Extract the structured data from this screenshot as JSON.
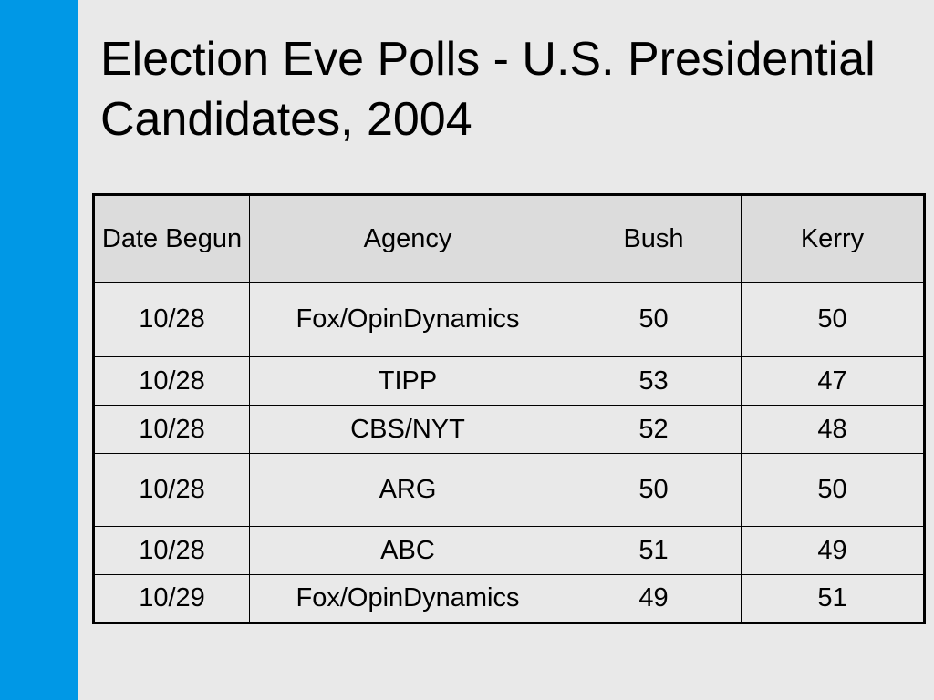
{
  "slide": {
    "title": "Election Eve Polls - U.S. Presidential Candidates, 2004",
    "accent_color": "#0098e6",
    "background_color": "#e9e9e9",
    "header_fill_color": "#dcdcdc"
  },
  "table": {
    "columns": [
      "Date Begun",
      "Agency",
      "Bush",
      "Kerry"
    ],
    "rows": [
      [
        "10/28",
        "Fox/OpinDynamics",
        "50",
        "50"
      ],
      [
        "10/28",
        "TIPP",
        "53",
        "47"
      ],
      [
        "10/28",
        "CBS/NYT",
        "52",
        "48"
      ],
      [
        "10/28",
        "ARG",
        "50",
        "50"
      ],
      [
        "10/28",
        "ABC",
        "51",
        "49"
      ],
      [
        "10/29",
        "Fox/OpinDynamics",
        "49",
        "51"
      ]
    ]
  }
}
